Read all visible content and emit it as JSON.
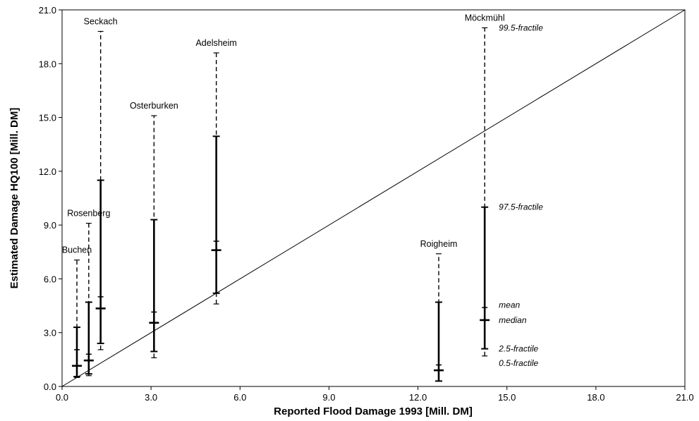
{
  "chart_data": {
    "type": "error-bar",
    "title": "",
    "xlabel": "Reported Flood Damage 1993 [Mill. DM]",
    "ylabel": "Estimated Damage HQ100 [Mill. DM]",
    "xlim": [
      0,
      21
    ],
    "ylim": [
      0,
      21
    ],
    "x_ticks": [
      "0.0",
      "3.0",
      "6.0",
      "9.0",
      "12.0",
      "15.0",
      "18.0",
      "21.0"
    ],
    "y_ticks": [
      "0.0",
      "3.0",
      "6.0",
      "9.0",
      "12.0",
      "15.0",
      "18.0",
      "21.0"
    ],
    "grid": false,
    "reference_line": {
      "type": "1:1 diagonal",
      "from": [
        0,
        0
      ],
      "to": [
        21,
        21
      ]
    },
    "series": [
      {
        "name": "Buchen",
        "x": 0.5,
        "p0_5": 0.5,
        "p2_5": 0.55,
        "median": 1.15,
        "mean": 2.05,
        "p97_5": 3.3,
        "p99_5": 7.05
      },
      {
        "name": "Rosenberg",
        "x": 0.9,
        "p0_5": 0.6,
        "p2_5": 0.7,
        "median": 1.45,
        "mean": 1.8,
        "p97_5": 4.7,
        "p99_5": 9.1
      },
      {
        "name": "Seckach",
        "x": 1.3,
        "p0_5": 2.05,
        "p2_5": 2.4,
        "median": 4.35,
        "mean": 5.0,
        "p97_5": 11.5,
        "p99_5": 19.8
      },
      {
        "name": "Osterburken",
        "x": 3.1,
        "p0_5": 1.6,
        "p2_5": 1.95,
        "median": 3.55,
        "mean": 4.15,
        "p97_5": 9.3,
        "p99_5": 15.1
      },
      {
        "name": "Adelsheim",
        "x": 5.2,
        "p0_5": 4.6,
        "p2_5": 5.2,
        "median": 7.6,
        "mean": 8.1,
        "p97_5": 13.95,
        "p99_5": 18.6
      },
      {
        "name": "Roigheim",
        "x": 12.7,
        "p0_5": 0.3,
        "p2_5": 0.3,
        "median": 0.9,
        "mean": 1.2,
        "p97_5": 4.7,
        "p99_5": 7.4
      },
      {
        "name": "Möckmühl",
        "x": 14.25,
        "p0_5": 1.7,
        "p2_5": 2.1,
        "median": 3.7,
        "mean": 4.4,
        "p97_5": 10.0,
        "p99_5": 20.0
      }
    ],
    "legend_annotations": [
      {
        "text": "99.5-fractile",
        "y": 20.0
      },
      {
        "text": "97.5-fractile",
        "y": 10.0
      },
      {
        "text": "mean",
        "y": 4.55
      },
      {
        "text": "median",
        "y": 3.7
      },
      {
        "text": "2.5-fractile",
        "y": 2.1
      },
      {
        "text": "0.5-fractile",
        "y": 1.3
      }
    ]
  }
}
